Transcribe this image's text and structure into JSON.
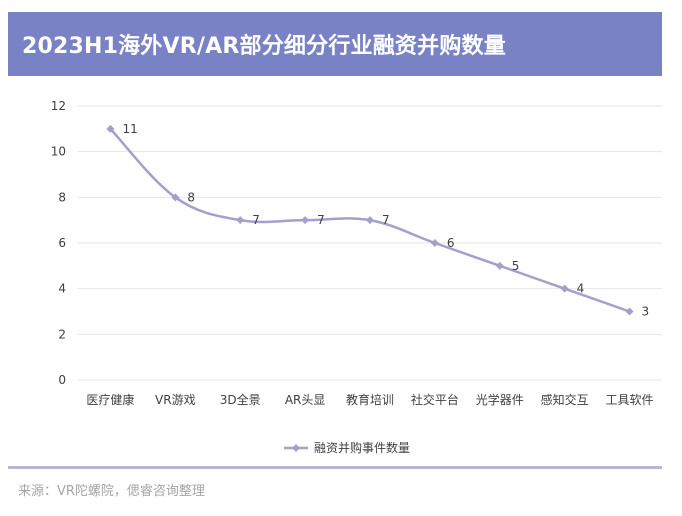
{
  "title": "2023H1海外VR/AR部分细分行业融资并购数量",
  "source": "来源：VR陀螺院，偲睿咨询整理",
  "colors": {
    "title_bar": "#7882c4",
    "series_line": "#a4a0cc",
    "grid": "#e6e6e6",
    "rule": "#b9b6d3"
  },
  "chart_data": {
    "type": "line",
    "categories": [
      "医疗健康",
      "VR游戏",
      "3D全景",
      "AR头显",
      "教育培训",
      "社交平台",
      "光学器件",
      "感知交互",
      "工具软件"
    ],
    "series": [
      {
        "name": "融资并购事件数量",
        "values": [
          11,
          8,
          7,
          7,
          7,
          6,
          5,
          4,
          3
        ]
      }
    ],
    "ylim": [
      0,
      12
    ],
    "yticks": [
      0,
      2,
      4,
      6,
      8,
      10,
      12
    ],
    "smooth": true,
    "grid": "horizontal",
    "legend": "bottom",
    "data_labels": true
  }
}
